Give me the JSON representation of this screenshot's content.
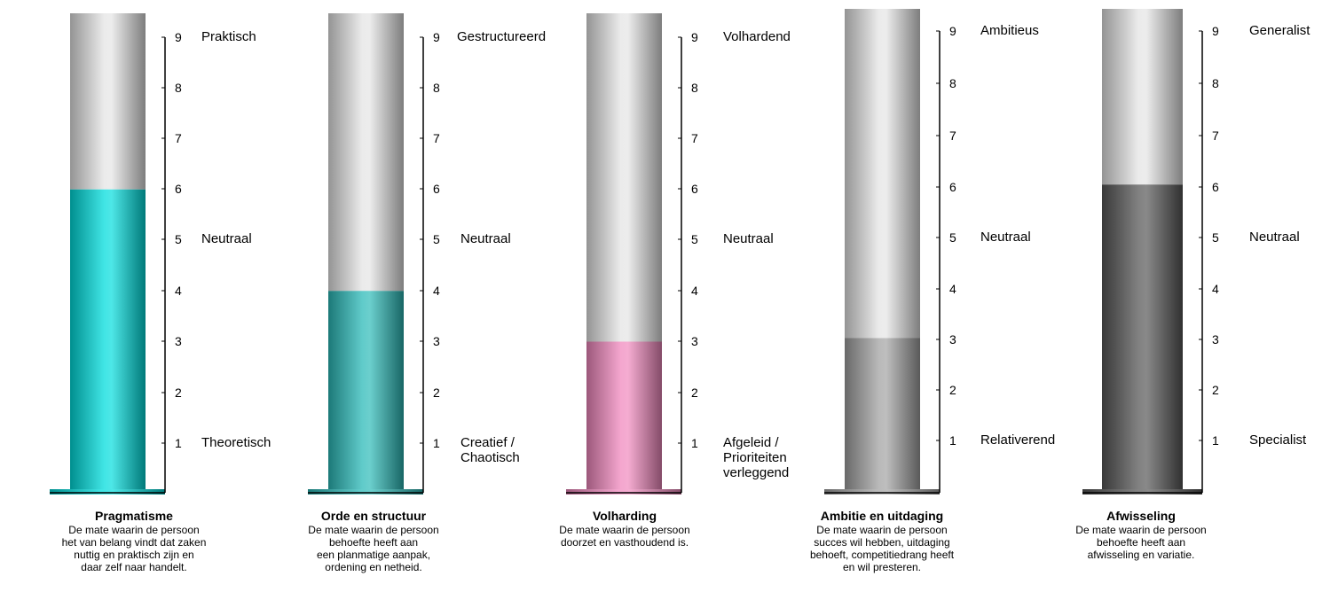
{
  "chart_data": [
    {
      "type": "bar",
      "title": "Pragmatisme",
      "description": [
        "De mate waarin de persoon",
        "het van belang vindt dat zaken",
        "nuttig en praktisch zijn en",
        "daar zelf naar handelt."
      ],
      "value": 6,
      "ylim": [
        0,
        9
      ],
      "ticks": [
        1,
        2,
        3,
        4,
        5,
        6,
        7,
        8,
        9
      ],
      "labels": {
        "top": [
          "Praktisch"
        ],
        "middle": [
          "Neutraal"
        ],
        "bottom": [
          "Theoretisch"
        ]
      },
      "fill_color": "#00dcdc"
    },
    {
      "type": "bar",
      "title": "Orde en structuur",
      "description": [
        "De mate waarin de persoon",
        "behoefte heeft aan",
        "een planmatige aanpak,",
        "ordening en netheid."
      ],
      "value": 4,
      "ylim": [
        0,
        9
      ],
      "ticks": [
        1,
        2,
        3,
        4,
        5,
        6,
        7,
        8,
        9
      ],
      "labels": {
        "top": [
          "Gestructureerd"
        ],
        "middle": [
          "Neutraal"
        ],
        "bottom": [
          "Creatief /",
          "Chaotisch"
        ]
      },
      "fill_color": "#2bbab8"
    },
    {
      "type": "bar",
      "title": "Volharding",
      "description": [
        "De mate waarin de persoon",
        "doorzet en vasthoudend is."
      ],
      "value": 3,
      "ylim": [
        0,
        9
      ],
      "ticks": [
        1,
        2,
        3,
        4,
        5,
        6,
        7,
        8,
        9
      ],
      "labels": {
        "top": [
          "Volhardend"
        ],
        "middle": [
          "Neutraal"
        ],
        "bottom": [
          "Afgeleid /",
          "Prioriteiten",
          "verleggend"
        ]
      },
      "fill_color": "#f088bd"
    },
    {
      "type": "bar",
      "title": "Ambitie en uitdaging",
      "description": [
        "De mate waarin de persoon",
        "succes wil hebben, uitdaging",
        "behoeft, competitiedrang heeft",
        "en wil presteren."
      ],
      "value": 3,
      "ylim": [
        0,
        9
      ],
      "ticks": [
        1,
        2,
        3,
        4,
        5,
        6,
        7,
        8,
        9
      ],
      "labels": {
        "top": [
          "Ambitieus"
        ],
        "middle": [
          "Neutraal"
        ],
        "bottom": [
          "Relativerend"
        ]
      },
      "fill_color": "#a2a2a2"
    },
    {
      "type": "bar",
      "title": "Afwisseling",
      "description": [
        "De mate waarin de persoon",
        "behoefte heeft aan",
        "afwisseling en variatie."
      ],
      "value": 6,
      "ylim": [
        0,
        9
      ],
      "ticks": [
        1,
        2,
        3,
        4,
        5,
        6,
        7,
        8,
        9
      ],
      "labels": {
        "top": [
          "Generalist"
        ],
        "middle": [
          "Neutraal"
        ],
        "bottom": [
          "Specialist"
        ]
      },
      "fill_color": "#575757"
    }
  ]
}
